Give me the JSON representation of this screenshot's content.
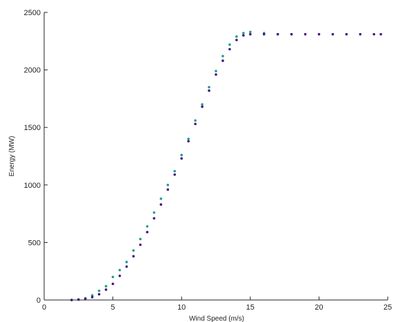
{
  "chart_data": {
    "type": "scatter",
    "title": "",
    "xlabel": "Wind Speed (m/s)",
    "ylabel": "Energy (MW)",
    "xlim": [
      0,
      25
    ],
    "ylim": [
      0,
      2500
    ],
    "xticks": [
      0,
      5,
      10,
      15,
      20,
      25
    ],
    "yticks": [
      0,
      500,
      1000,
      1500,
      2000,
      2500
    ],
    "grid": false,
    "legend": "none",
    "series": [
      {
        "color": "#1f9e89",
        "points": [
          [
            2.0,
            0
          ],
          [
            2.5,
            5
          ],
          [
            3.0,
            15
          ],
          [
            3.5,
            40
          ],
          [
            4.0,
            80
          ],
          [
            4.5,
            120
          ],
          [
            5.0,
            200
          ],
          [
            5.5,
            260
          ],
          [
            6.0,
            330
          ],
          [
            6.5,
            430
          ],
          [
            7.0,
            530
          ],
          [
            7.5,
            640
          ],
          [
            8.0,
            760
          ],
          [
            8.5,
            880
          ],
          [
            9.0,
            1000
          ],
          [
            9.5,
            1120
          ],
          [
            10.0,
            1260
          ],
          [
            10.5,
            1400
          ],
          [
            11.0,
            1560
          ],
          [
            11.5,
            1700
          ],
          [
            12.0,
            1850
          ],
          [
            12.5,
            1990
          ],
          [
            13.0,
            2120
          ],
          [
            13.5,
            2220
          ],
          [
            14.0,
            2290
          ],
          [
            14.5,
            2320
          ],
          [
            15.0,
            2330
          ],
          [
            16.0,
            2320
          ],
          [
            17.0,
            2310
          ],
          [
            18.0,
            2310
          ]
        ]
      },
      {
        "color": "#440e8a",
        "points": [
          [
            2.0,
            0
          ],
          [
            2.5,
            3
          ],
          [
            3.0,
            10
          ],
          [
            3.5,
            25
          ],
          [
            4.0,
            50
          ],
          [
            4.5,
            90
          ],
          [
            5.0,
            140
          ],
          [
            5.5,
            210
          ],
          [
            6.0,
            290
          ],
          [
            6.5,
            380
          ],
          [
            7.0,
            480
          ],
          [
            7.5,
            590
          ],
          [
            8.0,
            710
          ],
          [
            8.5,
            830
          ],
          [
            9.0,
            960
          ],
          [
            9.5,
            1090
          ],
          [
            10.0,
            1230
          ],
          [
            10.5,
            1380
          ],
          [
            11.0,
            1530
          ],
          [
            11.5,
            1680
          ],
          [
            12.0,
            1820
          ],
          [
            12.5,
            1960
          ],
          [
            13.0,
            2080
          ],
          [
            13.5,
            2180
          ],
          [
            14.0,
            2260
          ],
          [
            14.5,
            2300
          ],
          [
            15.0,
            2310
          ],
          [
            16.0,
            2310
          ],
          [
            17.0,
            2310
          ],
          [
            18.0,
            2310
          ],
          [
            19.0,
            2310
          ],
          [
            20.0,
            2310
          ],
          [
            21.0,
            2310
          ],
          [
            22.0,
            2310
          ],
          [
            23.0,
            2310
          ],
          [
            24.0,
            2310
          ],
          [
            24.5,
            2310
          ]
        ]
      }
    ]
  }
}
